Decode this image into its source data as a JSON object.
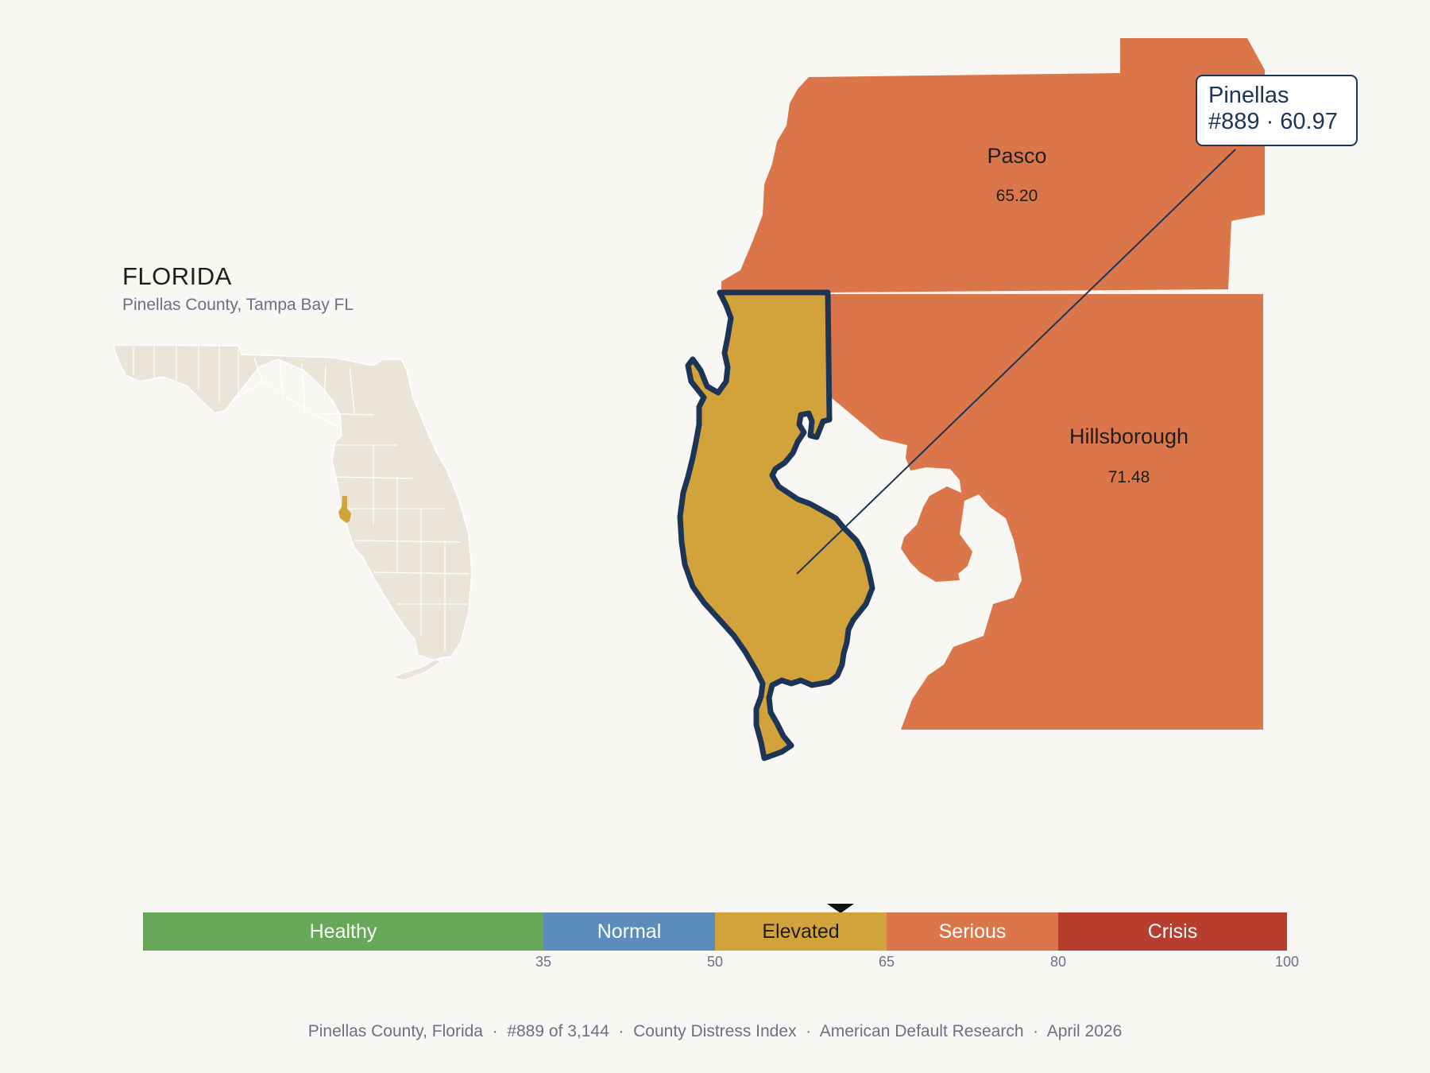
{
  "state": {
    "title": "FLORIDA",
    "subtitle": "Pinellas County, Tampa Bay FL"
  },
  "counties": [
    {
      "name": "Pasco",
      "score": "65.20",
      "color": "#db764a"
    },
    {
      "name": "Hillsborough",
      "score": "71.48",
      "color": "#db764a"
    },
    {
      "name": "Pinellas",
      "score": "60.97",
      "color": "#d3a33b",
      "outline": "#1c3557"
    }
  ],
  "callout": {
    "line1": "Pinellas",
    "line2": "#889 · 60.97"
  },
  "legend": {
    "bands": [
      {
        "label": "Healthy",
        "from": 0,
        "to": 35,
        "color": "#67a858",
        "text_color": "#ffffff"
      },
      {
        "label": "Normal",
        "from": 35,
        "to": 50,
        "color": "#5b8cbc",
        "text_color": "#ffffff"
      },
      {
        "label": "Elevated",
        "from": 50,
        "to": 65,
        "color": "#d3a33b",
        "text_color": "#1e1e1e"
      },
      {
        "label": "Serious",
        "from": 65,
        "to": 80,
        "color": "#db764a",
        "text_color": "#ffffff"
      },
      {
        "label": "Crisis",
        "from": 80,
        "to": 100,
        "color": "#b83d2c",
        "text_color": "#ffffff"
      }
    ],
    "ticks": [
      "35",
      "50",
      "65",
      "80",
      "100"
    ],
    "marker_value": 60.97
  },
  "inset": {
    "base_color": "#ebe5d9",
    "highlight_color": "#d3a33b"
  },
  "footer": {
    "parts": [
      "Pinellas County, Florida",
      "#889 of 3,144",
      "County Distress Index",
      "American Default Research",
      "April 2026"
    ],
    "separator": "·"
  }
}
